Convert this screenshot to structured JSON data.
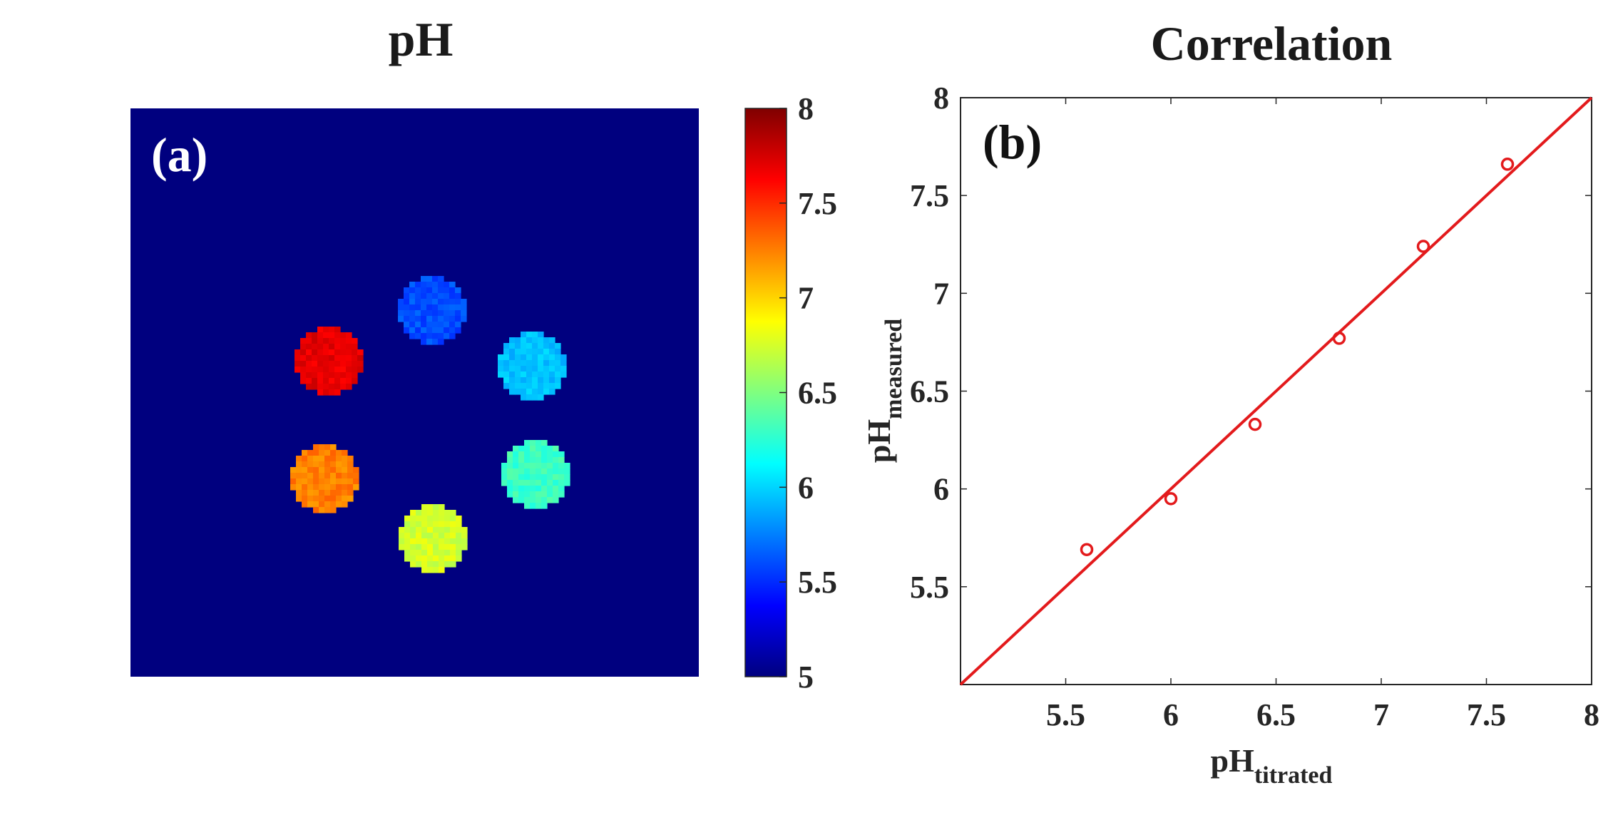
{
  "chart_data": [
    {
      "type": "heatmap",
      "title": "pH",
      "panel_label": "(a)",
      "background_value": 5,
      "colormap": "jet",
      "colorbar": {
        "range": [
          5,
          8
        ],
        "ticks": [
          "5",
          "5.5",
          "6",
          "6.5",
          "7",
          "7.5",
          "8"
        ],
        "placement": "right"
      },
      "phantoms": [
        {
          "position": "top",
          "value": 5.6
        },
        {
          "position": "upper-right",
          "value": 5.95
        },
        {
          "position": "lower-right",
          "value": 6.3
        },
        {
          "position": "bottom",
          "value": 6.75
        },
        {
          "position": "lower-left",
          "value": 7.25
        },
        {
          "position": "upper-left",
          "value": 7.7
        }
      ]
    },
    {
      "type": "scatter",
      "title": "Correlation",
      "panel_label": "(b)",
      "xlabel": "pH",
      "xlabel_sub": "titrated",
      "ylabel": "pH",
      "ylabel_sub": "measured",
      "xlim": [
        5,
        8
      ],
      "ylim": [
        5,
        8
      ],
      "xticks": [
        "5.5",
        "6",
        "6.5",
        "7",
        "7.5",
        "8"
      ],
      "yticks": [
        "5.5",
        "6",
        "6.5",
        "7",
        "7.5",
        "8"
      ],
      "grid": false,
      "series": [
        {
          "color": "#e31a1c",
          "marker": "circle",
          "x": [
            5.6,
            6.0,
            6.4,
            6.8,
            7.2,
            7.6
          ],
          "y": [
            5.69,
            5.95,
            6.33,
            6.77,
            7.24,
            7.66
          ]
        }
      ],
      "fit_line": {
        "color": "#e31a1c",
        "x": [
          5,
          8
        ],
        "y": [
          5,
          8
        ]
      }
    }
  ]
}
